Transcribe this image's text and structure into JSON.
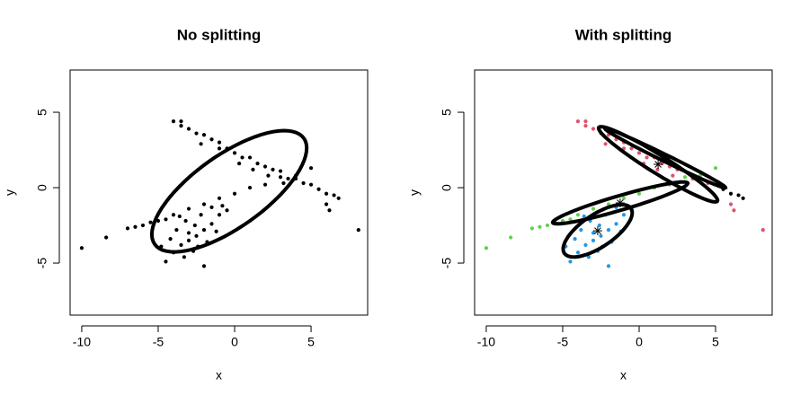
{
  "chart_data": [
    {
      "type": "scatter",
      "title": "No splitting",
      "xlabel": "x",
      "ylabel": "y",
      "xlim": [
        -10.76,
        8.7
      ],
      "ylim": [
        -8.45,
        7.8
      ],
      "xticks": [
        -10,
        -5,
        0,
        5
      ],
      "yticks": [
        -5,
        0,
        5
      ],
      "series": [
        {
          "color": "#000000",
          "x": [
            -4,
            -3.5,
            -3,
            -2.5,
            -2,
            -1.5,
            -1,
            -0.5,
            0,
            0.5,
            1,
            1.5,
            2,
            2.5,
            3,
            3.5,
            4,
            4.5,
            5,
            -1,
            0.3,
            1.2,
            2.2,
            3.2,
            -2.2,
            6,
            6.2,
            8.1,
            -3.5
          ],
          "values": [
            4.4,
            4.1,
            3.9,
            3.6,
            3.5,
            3.2,
            3.0,
            2.6,
            2.3,
            2.0,
            2.0,
            1.6,
            1.4,
            1.2,
            1.1,
            0.6,
            0.6,
            0.3,
            0.2,
            2.6,
            1.6,
            1.2,
            0.8,
            0.3,
            2.9,
            -1.1,
            -1.5,
            -2.8,
            4.4
          ]
        },
        {
          "color": "#000000",
          "x": [
            5.5,
            6,
            6.5,
            6.8
          ],
          "values": [
            -0.1,
            -0.4,
            -0.5,
            -0.7
          ]
        },
        {
          "color": "#000000",
          "x": [
            -10,
            -8.4,
            -7,
            -6.5,
            -6,
            -5.5,
            -5,
            -4,
            -3,
            -2,
            -1,
            0,
            1,
            2,
            3,
            4,
            5,
            -4.5
          ],
          "values": [
            -4,
            -3.3,
            -2.7,
            -2.6,
            -2.5,
            -2.3,
            -2.2,
            -1.8,
            -1.4,
            -1.1,
            -0.7,
            -0.4,
            0,
            0.2,
            0.7,
            0.8,
            1.3,
            -2.1
          ]
        },
        {
          "color": "#000000",
          "x": [
            -4.5,
            -4,
            -3.5,
            -3,
            -2.5,
            -2,
            -1.5,
            -1,
            -0.5,
            -3.8,
            -3.2,
            -2.2,
            -1.8,
            -2.7,
            -3.3,
            -2,
            -4.2,
            -1.2,
            -2.6,
            -3.6,
            -0.8,
            -1.5,
            -4.8,
            -2.4,
            -3
          ],
          "values": [
            -4.9,
            -4.3,
            -3.8,
            -3.5,
            -3.2,
            -2.8,
            -2.4,
            -1.8,
            -1.5,
            -2.8,
            -2.2,
            -1.8,
            -3.6,
            -4.2,
            -4.6,
            -5.2,
            -3.4,
            -2.9,
            -2.5,
            -1.9,
            -1.2,
            -1.3,
            -3.9,
            -3.9,
            -3
          ]
        }
      ],
      "show_centers": false,
      "ellipses": [
        {
          "color": "#000000",
          "center": [
            -0.35,
            -0.24
          ],
          "axis1": [
            4.88,
            3.51
          ],
          "axis2": [
            1.35,
            -1.96
          ]
        }
      ]
    },
    {
      "type": "scatter",
      "title": "With splitting",
      "xlabel": "x",
      "ylabel": "y",
      "xlim": [
        -10.76,
        8.7
      ],
      "ylim": [
        -8.45,
        7.8
      ],
      "xticks": [
        -10,
        -5,
        0,
        5
      ],
      "yticks": [
        -5,
        0,
        5
      ],
      "series": [
        {
          "color": "#df536b",
          "x": [
            -4,
            -3.5,
            -3,
            -2.5,
            -2,
            -1.5,
            -1,
            -0.5,
            0,
            0.5,
            1,
            1.5,
            2,
            2.5,
            3,
            3.5,
            4,
            4.5,
            5,
            -1,
            0.3,
            1.2,
            2.2,
            3.2,
            -2.2,
            6,
            6.2,
            8.1,
            -3.5
          ],
          "values": [
            4.4,
            4.1,
            3.9,
            3.6,
            3.5,
            3.2,
            3.0,
            2.6,
            2.3,
            2.0,
            2.0,
            1.6,
            1.4,
            1.2,
            1.1,
            0.6,
            0.6,
            0.3,
            0.2,
            2.6,
            1.6,
            1.2,
            0.8,
            0.3,
            2.9,
            -1.1,
            -1.5,
            -2.8,
            4.4
          ]
        },
        {
          "color": "#000000",
          "x": [
            5.5,
            6,
            6.5,
            6.8
          ],
          "values": [
            -0.1,
            -0.4,
            -0.5,
            -0.7
          ]
        },
        {
          "color": "#61d04f",
          "x": [
            -10,
            -8.4,
            -7,
            -6.5,
            -6,
            -5.5,
            -5,
            -4,
            -3,
            -2,
            -1,
            0,
            1,
            2,
            3,
            4,
            5,
            -4.5
          ],
          "values": [
            -4,
            -3.3,
            -2.7,
            -2.6,
            -2.5,
            -2.3,
            -2.2,
            -1.8,
            -1.4,
            -1.1,
            -0.7,
            -0.4,
            0,
            0.2,
            0.7,
            0.8,
            1.3,
            -2.1
          ]
        },
        {
          "color": "#2297e6",
          "x": [
            -4.5,
            -4,
            -3.5,
            -3,
            -2.5,
            -2,
            -1.5,
            -1,
            -0.5,
            -3.8,
            -3.2,
            -2.2,
            -1.8,
            -2.7,
            -3.3,
            -2,
            -4.2,
            -1.2,
            -2.6,
            -3.6,
            -0.8,
            -1.5,
            -4.8,
            -2.4,
            -3
          ],
          "values": [
            -4.9,
            -4.3,
            -3.8,
            -3.5,
            -3.2,
            -2.8,
            -2.4,
            -1.8,
            -1.5,
            -2.8,
            -2.2,
            -1.8,
            -3.6,
            -4.2,
            -4.6,
            -5.2,
            -3.4,
            -2.9,
            -2.5,
            -1.9,
            -1.2,
            -1.3,
            -3.9,
            -3.9,
            -3
          ]
        }
      ],
      "show_centers": true,
      "ellipses": [
        {
          "color": "#000000",
          "center": [
            1.24,
            1.55
          ],
          "axis1": [
            3.88,
            -2.44
          ],
          "axis2": [
            -0.31,
            -0.51
          ]
        },
        {
          "color": "#000000",
          "center": [
            1.71,
            1.96
          ],
          "axis1": [
            3.94,
            -1.96
          ],
          "axis2": [
            -0.1,
            -0.2
          ]
        },
        {
          "color": "#000000",
          "center": [
            -1.24,
            -1.01
          ],
          "axis1": [
            4.41,
            1.31
          ],
          "axis2": [
            0.13,
            -0.46
          ]
        },
        {
          "color": "#000000",
          "center": [
            -2.71,
            -2.86
          ],
          "axis1": [
            2.18,
            1.49
          ],
          "axis2": [
            0.59,
            -0.89
          ]
        }
      ]
    }
  ]
}
